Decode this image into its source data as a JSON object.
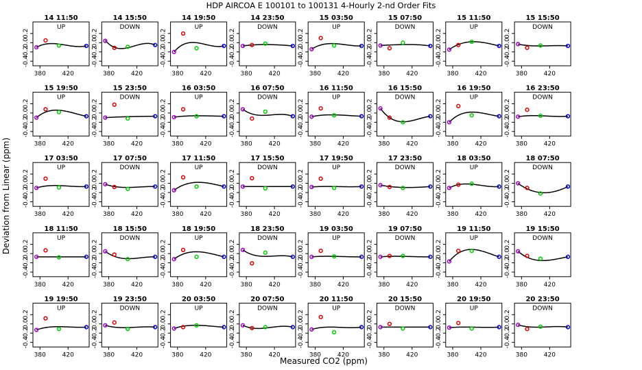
{
  "chart_data": {
    "type": "scatter",
    "title": "HDP    AIRCOA E    100101 to 100131    4-Hourly 2-nd Order Fits",
    "xlabel": "Measured CO2 (ppm)",
    "ylabel": "Deviation from Linear (ppm)",
    "xlim": [
      370,
      450
    ],
    "ylim": [
      -0.5,
      0.45
    ],
    "x_ticks": [
      380,
      420
    ],
    "y_ticks": [
      0.2,
      0.0,
      -0.2,
      -0.4
    ],
    "x_tick_labels": [
      "380",
      "420"
    ],
    "y_tick_labels": [
      "0.2",
      "0.0",
      "-0.2",
      "-0.4"
    ],
    "grid": false,
    "point_x": [
      375,
      388,
      407,
      446
    ],
    "point_colors": [
      "#a000c8",
      "#dd0000",
      "#00cc00",
      "#0000cc"
    ],
    "panels": [
      {
        "label": "14 11:50",
        "dir": "UP",
        "y": [
          -0.1,
          0.05,
          -0.06,
          -0.07
        ],
        "fit": [
          -0.1,
          -0.03,
          -0.03,
          -0.07
        ]
      },
      {
        "label": "14 15:50",
        "dir": "DOWN",
        "y": [
          0.04,
          -0.11,
          -0.09,
          -0.05
        ],
        "fit": [
          0.05,
          -0.1,
          -0.11,
          -0.05
        ]
      },
      {
        "label": "14 19:50",
        "dir": "UP",
        "y": [
          -0.2,
          0.2,
          -0.12,
          -0.07
        ],
        "fit": [
          -0.2,
          -0.04,
          0.0,
          -0.07
        ]
      },
      {
        "label": "14 23:50",
        "dir": "DOWN",
        "y": [
          -0.07,
          -0.05,
          -0.02,
          -0.07
        ],
        "fit": [
          -0.07,
          -0.05,
          -0.04,
          -0.07
        ]
      },
      {
        "label": "15 03:50",
        "dir": "UP",
        "y": [
          -0.14,
          0.1,
          -0.06,
          -0.07
        ],
        "fit": [
          -0.14,
          -0.05,
          -0.02,
          -0.07
        ]
      },
      {
        "label": "15 07:50",
        "dir": "DOWN",
        "y": [
          -0.06,
          -0.12,
          0.0,
          -0.07
        ],
        "fit": [
          -0.06,
          -0.05,
          -0.04,
          -0.07
        ]
      },
      {
        "label": "15 11:50",
        "dir": "UP",
        "y": [
          -0.15,
          -0.05,
          0.02,
          -0.07
        ],
        "fit": [
          -0.15,
          -0.04,
          0.02,
          -0.07
        ]
      },
      {
        "label": "15 15:50",
        "dir": "DOWN",
        "y": [
          -0.03,
          -0.11,
          -0.06,
          -0.07
        ],
        "fit": [
          -0.03,
          -0.06,
          -0.07,
          -0.07
        ]
      },
      {
        "label": "15 19:50",
        "dir": "UP",
        "y": [
          -0.1,
          0.08,
          0.02,
          -0.07
        ],
        "fit": [
          -0.1,
          0.02,
          0.06,
          -0.07
        ]
      },
      {
        "label": "15 23:50",
        "dir": "DOWN",
        "y": [
          -0.1,
          0.18,
          -0.12,
          -0.07
        ],
        "fit": [
          -0.1,
          -0.09,
          -0.08,
          -0.07
        ]
      },
      {
        "label": "16 03:50",
        "dir": "UP",
        "y": [
          -0.09,
          0.08,
          -0.07,
          -0.07
        ],
        "fit": [
          -0.09,
          -0.07,
          -0.06,
          -0.07
        ]
      },
      {
        "label": "16 07:50",
        "dir": "DOWN",
        "y": [
          0.08,
          -0.12,
          0.03,
          -0.07
        ],
        "fit": [
          0.08,
          -0.02,
          -0.05,
          -0.07
        ]
      },
      {
        "label": "16 11:50",
        "dir": "UP",
        "y": [
          -0.08,
          0.1,
          -0.05,
          -0.07
        ],
        "fit": [
          -0.08,
          -0.05,
          -0.04,
          -0.07
        ]
      },
      {
        "label": "16 15:50",
        "dir": "DOWN",
        "y": [
          0.1,
          -0.1,
          -0.2,
          -0.07
        ],
        "fit": [
          0.1,
          -0.1,
          -0.19,
          -0.07
        ]
      },
      {
        "label": "16 19:50",
        "dir": "UP",
        "y": [
          -0.2,
          0.15,
          -0.05,
          -0.07
        ],
        "fit": [
          -0.2,
          -0.05,
          0.02,
          -0.07
        ]
      },
      {
        "label": "16 23:50",
        "dir": "DOWN",
        "y": [
          -0.08,
          0.07,
          -0.06,
          -0.07
        ],
        "fit": [
          -0.08,
          -0.06,
          -0.06,
          -0.07
        ]
      },
      {
        "label": "17 03:50",
        "dir": "UP",
        "y": [
          -0.1,
          0.1,
          -0.09,
          -0.07
        ],
        "fit": [
          -0.1,
          -0.06,
          -0.05,
          -0.07
        ]
      },
      {
        "label": "17 07:50",
        "dir": "DOWN",
        "y": [
          -0.02,
          -0.08,
          -0.12,
          -0.07
        ],
        "fit": [
          -0.02,
          -0.07,
          -0.09,
          -0.07
        ]
      },
      {
        "label": "17 11:50",
        "dir": "UP",
        "y": [
          -0.15,
          0.13,
          -0.07,
          -0.07
        ],
        "fit": [
          -0.15,
          -0.04,
          0.02,
          -0.07
        ]
      },
      {
        "label": "17 15:50",
        "dir": "DOWN",
        "y": [
          -0.07,
          0.11,
          -0.11,
          -0.07
        ],
        "fit": [
          -0.07,
          -0.07,
          -0.07,
          -0.07
        ]
      },
      {
        "label": "17 19:50",
        "dir": "UP",
        "y": [
          -0.08,
          0.1,
          -0.1,
          -0.07
        ],
        "fit": [
          -0.08,
          -0.07,
          -0.07,
          -0.07
        ]
      },
      {
        "label": "17 23:50",
        "dir": "DOWN",
        "y": [
          -0.04,
          -0.08,
          -0.1,
          -0.07
        ],
        "fit": [
          -0.04,
          -0.07,
          -0.09,
          -0.07
        ]
      },
      {
        "label": "18 03:50",
        "dir": "UP",
        "y": [
          -0.1,
          -0.03,
          -0.01,
          -0.07
        ],
        "fit": [
          -0.1,
          -0.03,
          -0.02,
          -0.07
        ]
      },
      {
        "label": "18 07:50",
        "dir": "DOWN",
        "y": [
          0.0,
          -0.1,
          -0.22,
          -0.07
        ],
        "fit": [
          0.0,
          -0.12,
          -0.2,
          -0.07
        ]
      },
      {
        "label": "18 11:50",
        "dir": "UP",
        "y": [
          -0.07,
          0.07,
          -0.08,
          -0.07
        ],
        "fit": [
          -0.07,
          -0.07,
          -0.07,
          -0.07
        ]
      },
      {
        "label": "18 15:50",
        "dir": "DOWN",
        "y": [
          0.05,
          -0.02,
          -0.12,
          -0.07
        ],
        "fit": [
          0.05,
          -0.06,
          -0.11,
          -0.07
        ]
      },
      {
        "label": "18 19:50",
        "dir": "UP",
        "y": [
          -0.12,
          0.08,
          -0.07,
          -0.07
        ],
        "fit": [
          -0.12,
          -0.01,
          0.04,
          -0.07
        ]
      },
      {
        "label": "18 23:50",
        "dir": "DOWN",
        "y": [
          0.08,
          -0.21,
          0.02,
          -0.07
        ],
        "fit": [
          0.08,
          -0.02,
          -0.06,
          -0.07
        ]
      },
      {
        "label": "19 03:50",
        "dir": "UP",
        "y": [
          -0.07,
          0.06,
          -0.06,
          -0.07
        ],
        "fit": [
          -0.07,
          -0.06,
          -0.06,
          -0.07
        ]
      },
      {
        "label": "19 07:50",
        "dir": "DOWN",
        "y": [
          -0.07,
          -0.05,
          -0.05,
          -0.07
        ],
        "fit": [
          -0.07,
          -0.06,
          -0.06,
          -0.07
        ]
      },
      {
        "label": "19 11:50",
        "dir": "UP",
        "y": [
          -0.17,
          0.06,
          0.06,
          -0.07
        ],
        "fit": [
          -0.17,
          0.01,
          0.09,
          -0.07
        ]
      },
      {
        "label": "19 15:50",
        "dir": "DOWN",
        "y": [
          0.05,
          -0.05,
          -0.11,
          -0.07
        ],
        "fit": [
          0.05,
          -0.08,
          -0.15,
          -0.07
        ]
      },
      {
        "label": "19 19:50",
        "dir": "UP",
        "y": [
          -0.13,
          0.12,
          -0.11,
          -0.07
        ],
        "fit": [
          -0.13,
          -0.08,
          -0.06,
          -0.07
        ]
      },
      {
        "label": "19 23:50",
        "dir": "DOWN",
        "y": [
          -0.03,
          0.03,
          -0.11,
          -0.07
        ],
        "fit": [
          -0.03,
          -0.07,
          -0.08,
          -0.07
        ]
      },
      {
        "label": "20 03:50",
        "dir": "UP",
        "y": [
          -0.1,
          -0.07,
          -0.03,
          -0.07
        ],
        "fit": [
          -0.1,
          -0.05,
          -0.03,
          -0.07
        ]
      },
      {
        "label": "20 07:50",
        "dir": "DOWN",
        "y": [
          -0.03,
          -0.09,
          -0.07,
          -0.07
        ],
        "fit": [
          -0.03,
          -0.09,
          -0.09,
          -0.07
        ]
      },
      {
        "label": "20 11:50",
        "dir": "UP",
        "y": [
          -0.12,
          0.15,
          -0.18,
          -0.07
        ],
        "fit": [
          -0.12,
          -0.08,
          -0.07,
          -0.07
        ]
      },
      {
        "label": "20 15:50",
        "dir": "DOWN",
        "y": [
          -0.07,
          0.0,
          -0.1,
          -0.07
        ],
        "fit": [
          -0.07,
          -0.07,
          -0.07,
          -0.07
        ]
      },
      {
        "label": "20 19:50",
        "dir": "UP",
        "y": [
          -0.08,
          0.02,
          -0.1,
          -0.07
        ],
        "fit": [
          -0.08,
          -0.07,
          -0.07,
          -0.07
        ]
      },
      {
        "label": "20 23:50",
        "dir": "DOWN",
        "y": [
          -0.02,
          -0.11,
          -0.06,
          -0.07
        ],
        "fit": [
          -0.02,
          -0.06,
          -0.07,
          -0.07
        ]
      }
    ]
  }
}
